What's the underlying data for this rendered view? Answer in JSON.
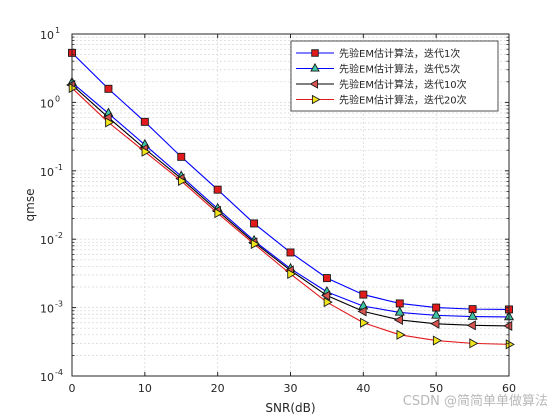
{
  "chart_data": {
    "type": "line",
    "xlabel": "SNR(dB)",
    "ylabel": "qmse",
    "xlim": [
      0,
      60
    ],
    "ylim": [
      0.0001,
      10
    ],
    "yscale": "log",
    "x_ticks": [
      0,
      10,
      20,
      30,
      40,
      50,
      60
    ],
    "y_ticks": [
      {
        "value": 10,
        "base": "10",
        "exp": "1"
      },
      {
        "value": 1,
        "base": "10",
        "exp": "0"
      },
      {
        "value": 0.1,
        "base": "10",
        "exp": "-1"
      },
      {
        "value": 0.01,
        "base": "10",
        "exp": "-2"
      },
      {
        "value": 0.001,
        "base": "10",
        "exp": "-3"
      },
      {
        "value": 0.0001,
        "base": "10",
        "exp": "-4"
      }
    ],
    "grid": true,
    "legend_position": "top-right",
    "x": [
      0,
      5,
      10,
      15,
      20,
      25,
      30,
      35,
      40,
      45,
      50,
      55,
      60
    ],
    "series": [
      {
        "name": "先验EM估计算法，迭代1次",
        "color": "#0000ff",
        "marker": "square",
        "marker_color": "#e31a1c",
        "values": [
          5.3,
          1.58,
          0.52,
          0.16,
          0.053,
          0.017,
          0.0064,
          0.0027,
          0.00155,
          0.00115,
          0.001,
          0.00095,
          0.00094
        ]
      },
      {
        "name": "先验EM估计算法，迭代5次",
        "color": "#0000ff",
        "marker": "triangle-up",
        "marker_color": "#3cc7a7",
        "values": [
          1.95,
          0.69,
          0.24,
          0.083,
          0.028,
          0.0095,
          0.0037,
          0.0017,
          0.00105,
          0.00085,
          0.00077,
          0.00074,
          0.00073
        ]
      },
      {
        "name": "先验EM估计算法，迭代10次",
        "color": "#000000",
        "marker": "triangle-left",
        "marker_color": "#d9534f",
        "values": [
          1.8,
          0.6,
          0.21,
          0.077,
          0.026,
          0.009,
          0.0035,
          0.0015,
          0.00088,
          0.00066,
          0.00058,
          0.00055,
          0.00054
        ]
      },
      {
        "name": "先验EM估计算法，迭代20次",
        "color": "#e31a1c",
        "marker": "triangle-right",
        "marker_color": "#f2e61a",
        "values": [
          1.62,
          0.51,
          0.19,
          0.071,
          0.024,
          0.0085,
          0.0031,
          0.0012,
          0.0006,
          0.0004,
          0.00033,
          0.0003,
          0.00029
        ]
      }
    ]
  },
  "watermark": "CSDN @简简单单做算法"
}
